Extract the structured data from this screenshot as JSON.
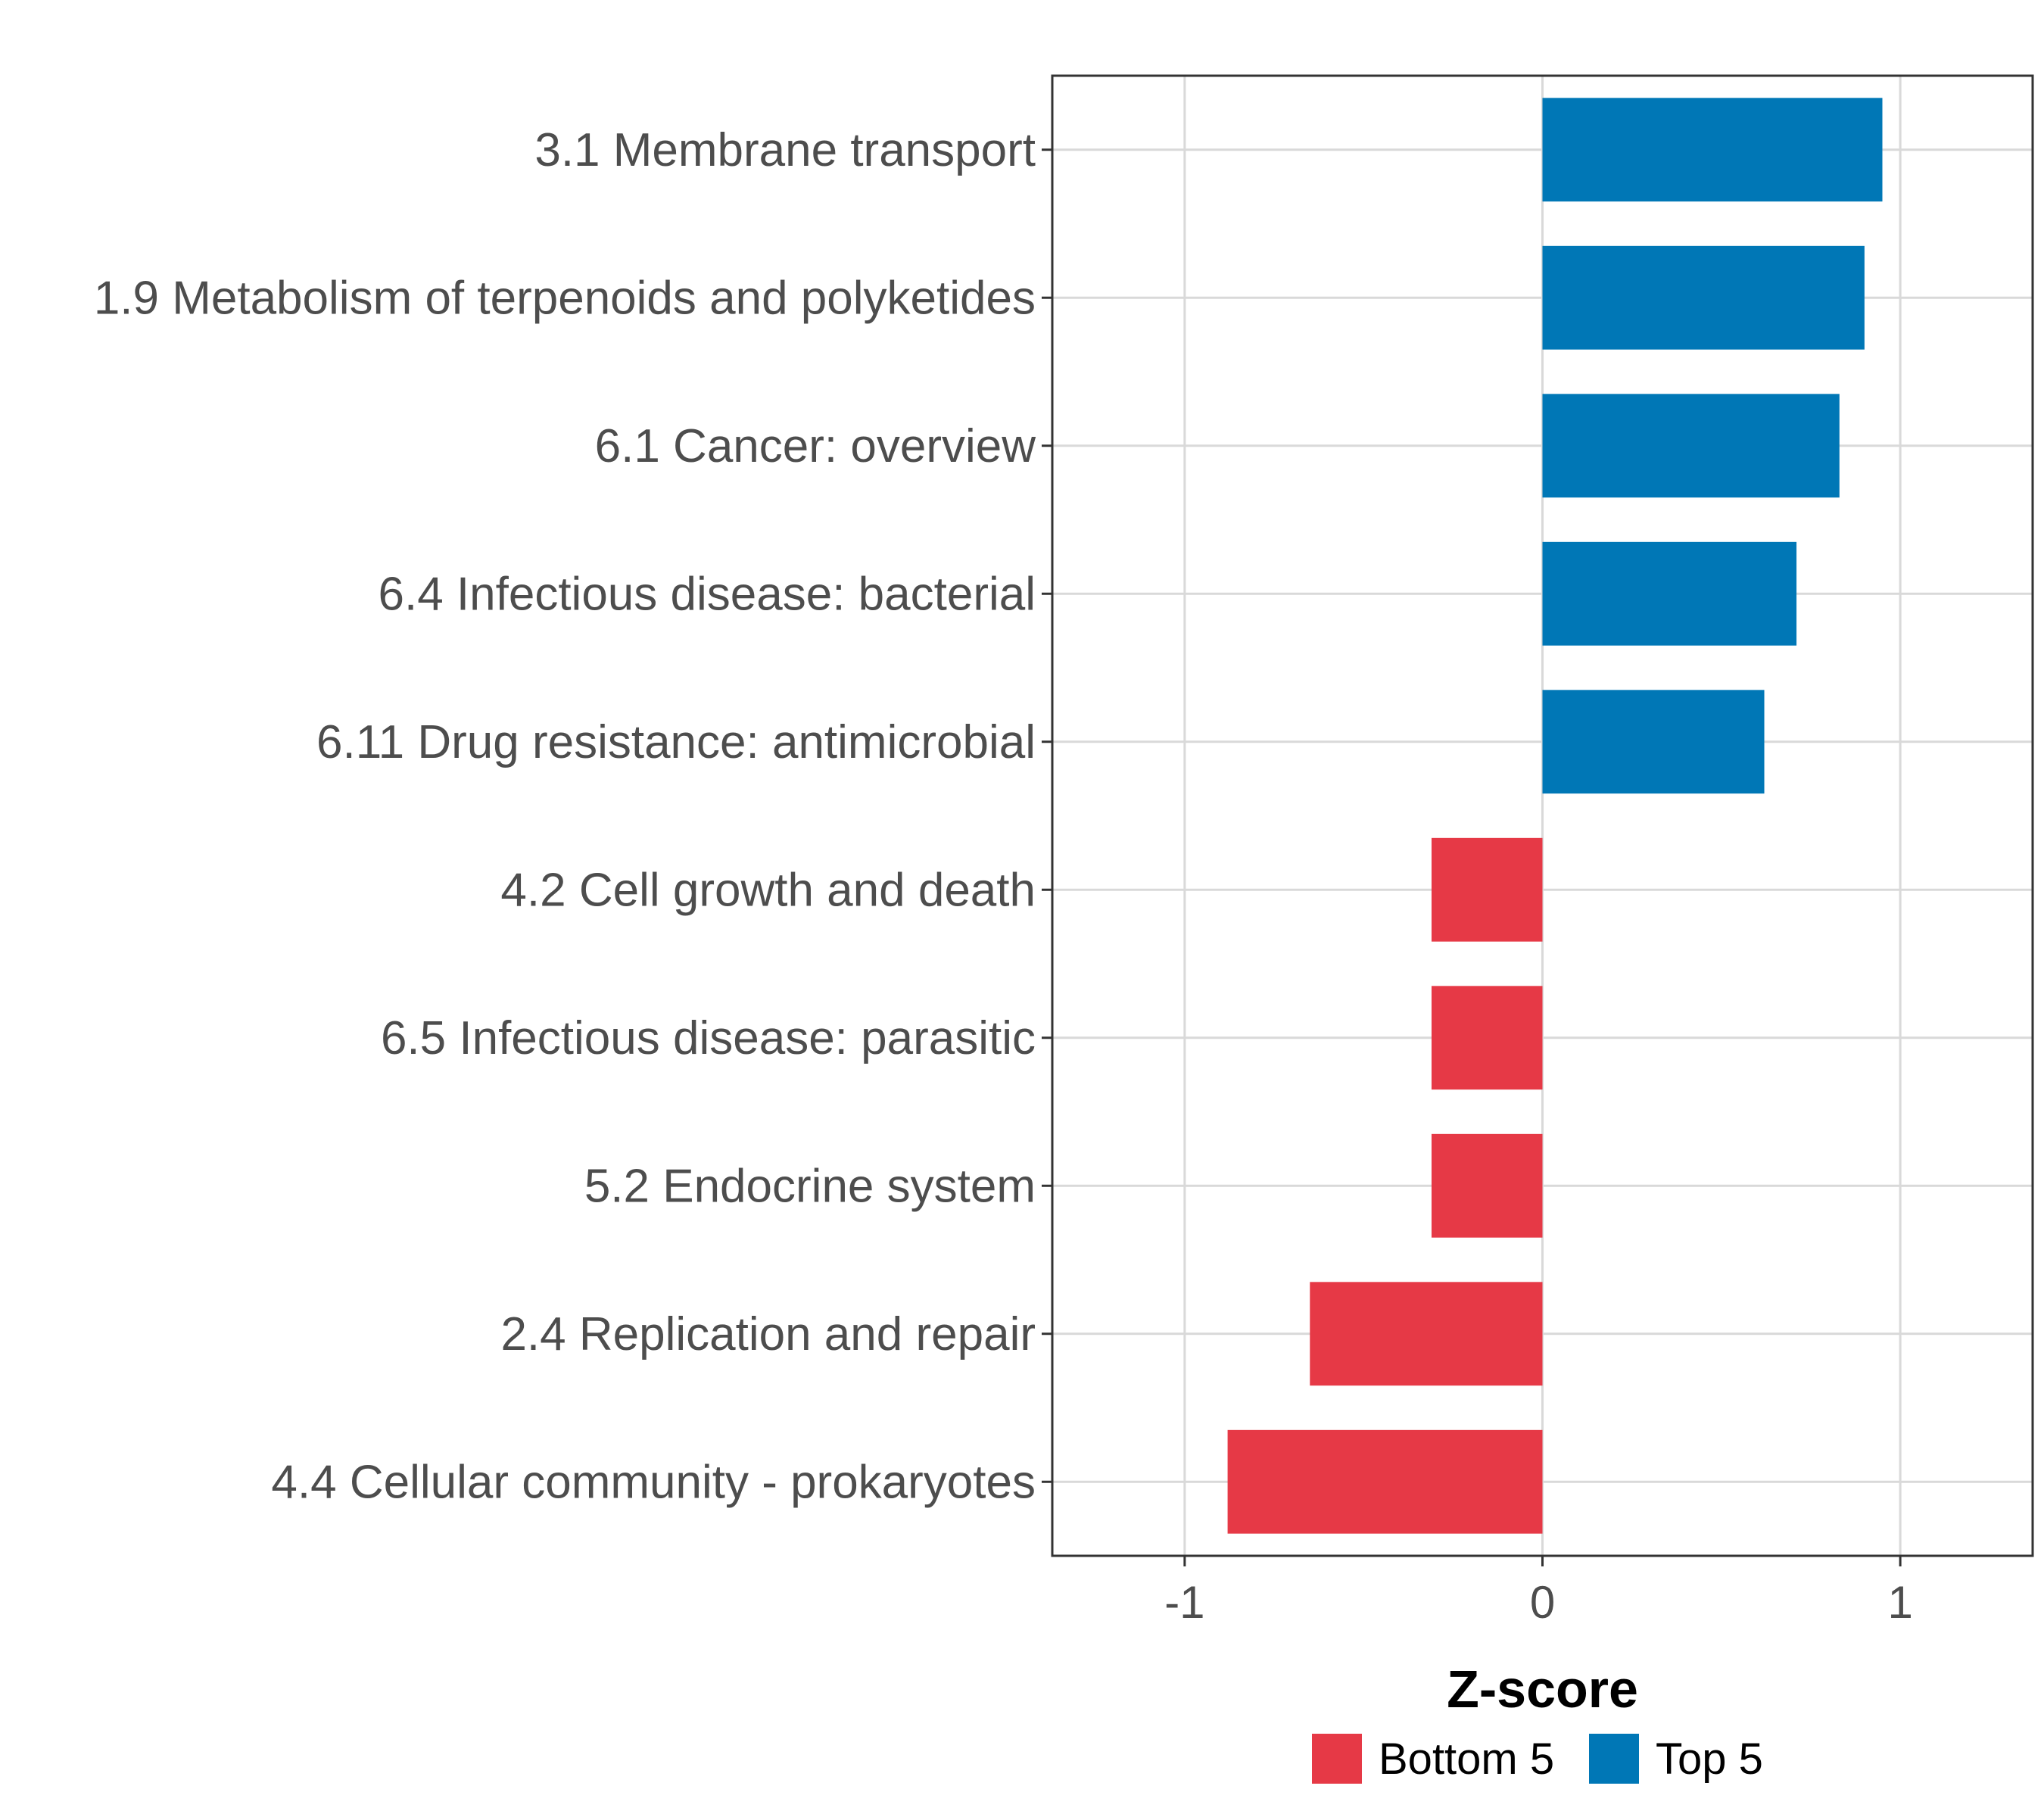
{
  "chart_data": {
    "type": "bar",
    "orientation": "horizontal",
    "xlabel": "Z-score",
    "xlim": [
      -1.37,
      1.37
    ],
    "xticks": [
      -1,
      0,
      1
    ],
    "xtick_labels": [
      "-1",
      "0",
      "1"
    ],
    "grid": true,
    "legend_position": "bottom",
    "bars": [
      {
        "label": "3.1 Membrane transport",
        "value": 0.95,
        "group": "Top 5"
      },
      {
        "label": "1.9 Metabolism of terpenoids and polyketides",
        "value": 0.9,
        "group": "Top 5"
      },
      {
        "label": "6.1 Cancer: overview",
        "value": 0.83,
        "group": "Top 5"
      },
      {
        "label": "6.4 Infectious disease: bacterial",
        "value": 0.71,
        "group": "Top 5"
      },
      {
        "label": "6.11 Drug resistance: antimicrobial",
        "value": 0.62,
        "group": "Top 5"
      },
      {
        "label": "4.2 Cell growth and death",
        "value": -0.31,
        "group": "Bottom 5"
      },
      {
        "label": "6.5 Infectious disease: parasitic",
        "value": -0.31,
        "group": "Bottom 5"
      },
      {
        "label": "5.2 Endocrine system",
        "value": -0.31,
        "group": "Bottom 5"
      },
      {
        "label": "2.4 Replication and repair",
        "value": -0.65,
        "group": "Bottom 5"
      },
      {
        "label": "4.4 Cellular community - prokaryotes",
        "value": -0.88,
        "group": "Bottom 5"
      }
    ],
    "legend": [
      {
        "name": "Bottom 5",
        "color": "#e63946"
      },
      {
        "name": "Top 5",
        "color": "#0077b6"
      }
    ]
  }
}
